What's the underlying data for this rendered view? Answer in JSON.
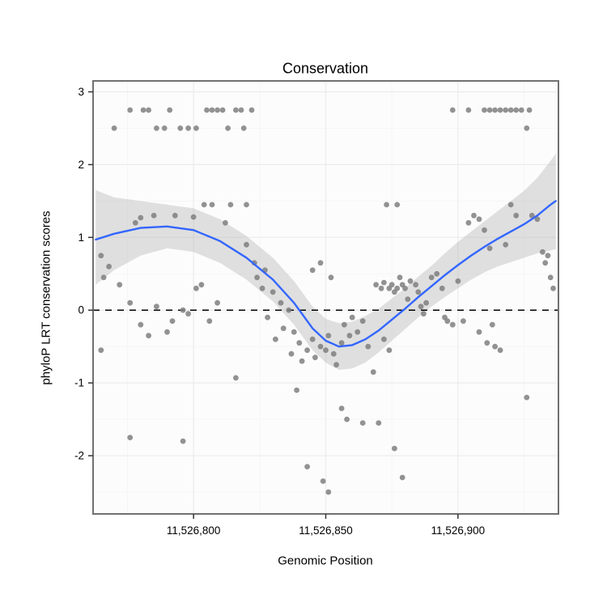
{
  "chart_data": {
    "type": "scatter",
    "title": "Conservation",
    "xlabel": "Genomic Position",
    "ylabel": "phyloP LRT conservation scores",
    "xlim": [
      11526762,
      11526938
    ],
    "ylim": [
      -2.8,
      3.15
    ],
    "x_ticks": [
      {
        "value": 11526800,
        "label": "11,526,800"
      },
      {
        "value": 11526850,
        "label": "11,526,850"
      },
      {
        "value": 11526900,
        "label": "11,526,900"
      }
    ],
    "y_ticks": [
      {
        "value": -2,
        "label": "-2"
      },
      {
        "value": -1,
        "label": "-1"
      },
      {
        "value": 0,
        "label": "0"
      },
      {
        "value": 1,
        "label": "1"
      },
      {
        "value": 2,
        "label": "2"
      },
      {
        "value": 3,
        "label": "3"
      }
    ],
    "x_minor": [
      11526775,
      11526825,
      11526875,
      11526925
    ],
    "y_minor": [
      -2.5,
      -1.5,
      -0.5,
      0.5,
      1.5,
      2.5
    ],
    "hline": 0,
    "legend": "none",
    "grid": "on",
    "colors": {
      "point": "#7F7F7F",
      "smooth": "#3366FF",
      "band": "#A8A8A8",
      "band_opacity": 0.35,
      "grid_major": "#ECECEC",
      "grid_minor": "#F6F6F6",
      "panel_bg": "#FCFCFC",
      "panel_border": "#707070",
      "hline": "#000000",
      "tick": "#333333",
      "text": "#000000"
    },
    "points": [
      [
        11526770,
        2.5
      ],
      [
        11526776,
        2.75
      ],
      [
        11526781,
        2.75
      ],
      [
        11526783,
        2.75
      ],
      [
        11526791,
        2.75
      ],
      [
        11526786,
        2.5
      ],
      [
        11526789,
        2.5
      ],
      [
        11526795,
        2.5
      ],
      [
        11526798,
        2.5
      ],
      [
        11526801,
        2.5
      ],
      [
        11526805,
        2.75
      ],
      [
        11526807,
        2.75
      ],
      [
        11526809,
        2.75
      ],
      [
        11526811,
        2.75
      ],
      [
        11526816,
        2.75
      ],
      [
        11526818,
        2.75
      ],
      [
        11526822,
        2.75
      ],
      [
        11526813,
        2.5
      ],
      [
        11526819,
        2.5
      ],
      [
        11526898,
        2.75
      ],
      [
        11526904,
        2.75
      ],
      [
        11526910,
        2.75
      ],
      [
        11526912,
        2.75
      ],
      [
        11526914,
        2.75
      ],
      [
        11526916,
        2.75
      ],
      [
        11526918,
        2.75
      ],
      [
        11526920,
        2.75
      ],
      [
        11526922,
        2.75
      ],
      [
        11526924,
        2.75
      ],
      [
        11526927,
        2.75
      ],
      [
        11526926,
        2.5
      ],
      [
        11526778,
        1.2
      ],
      [
        11526780,
        1.27
      ],
      [
        11526785,
        1.3
      ],
      [
        11526793,
        1.3
      ],
      [
        11526800,
        1.28
      ],
      [
        11526804,
        1.45
      ],
      [
        11526807,
        1.45
      ],
      [
        11526812,
        1.2
      ],
      [
        11526814,
        1.45
      ],
      [
        11526820,
        1.45
      ],
      [
        11526765,
        0.75
      ],
      [
        11526766,
        0.45
      ],
      [
        11526768,
        0.6
      ],
      [
        11526772,
        0.35
      ],
      [
        11526776,
        0.1
      ],
      [
        11526780,
        -0.2
      ],
      [
        11526783,
        -0.35
      ],
      [
        11526786,
        0.05
      ],
      [
        11526790,
        -0.3
      ],
      [
        11526792,
        -0.15
      ],
      [
        11526796,
        0.0
      ],
      [
        11526798,
        -0.05
      ],
      [
        11526801,
        0.3
      ],
      [
        11526803,
        0.35
      ],
      [
        11526806,
        -0.15
      ],
      [
        11526809,
        0.1
      ],
      [
        11526765,
        -0.55
      ],
      [
        11526776,
        -1.75
      ],
      [
        11526796,
        -1.8
      ],
      [
        11526820,
        0.9
      ],
      [
        11526823,
        0.65
      ],
      [
        11526824,
        0.45
      ],
      [
        11526826,
        0.3
      ],
      [
        11526827,
        0.55
      ],
      [
        11526828,
        -0.1
      ],
      [
        11526830,
        0.25
      ],
      [
        11526831,
        -0.4
      ],
      [
        11526833,
        0.1
      ],
      [
        11526834,
        -0.25
      ],
      [
        11526836,
        0.0
      ],
      [
        11526837,
        -0.6
      ],
      [
        11526838,
        -0.3
      ],
      [
        11526816,
        -0.93
      ],
      [
        11526839,
        -1.1
      ],
      [
        11526840,
        -0.45
      ],
      [
        11526841,
        -0.7
      ],
      [
        11526843,
        -0.55
      ],
      [
        11526845,
        -0.4
      ],
      [
        11526846,
        -0.65
      ],
      [
        11526848,
        -0.5
      ],
      [
        11526850,
        -0.55
      ],
      [
        11526851,
        -0.35
      ],
      [
        11526853,
        -0.6
      ],
      [
        11526854,
        -0.75
      ],
      [
        11526856,
        -0.45
      ],
      [
        11526857,
        -0.2
      ],
      [
        11526859,
        -0.35
      ],
      [
        11526860,
        -0.1
      ],
      [
        11526862,
        -0.3
      ],
      [
        11526864,
        -0.15
      ],
      [
        11526866,
        -0.5
      ],
      [
        11526845,
        0.55
      ],
      [
        11526848,
        0.65
      ],
      [
        11526852,
        0.45
      ],
      [
        11526843,
        -2.15
      ],
      [
        11526849,
        -2.35
      ],
      [
        11526851,
        -2.5
      ],
      [
        11526856,
        -1.35
      ],
      [
        11526858,
        -1.5
      ],
      [
        11526864,
        -1.55
      ],
      [
        11526868,
        -0.85
      ],
      [
        11526869,
        0.35
      ],
      [
        11526871,
        0.3
      ],
      [
        11526872,
        0.38
      ],
      [
        11526873,
        1.45
      ],
      [
        11526877,
        1.45
      ],
      [
        11526874,
        0.3
      ],
      [
        11526875,
        0.35
      ],
      [
        11526876,
        0.25
      ],
      [
        11526877,
        0.3
      ],
      [
        11526878,
        0.45
      ],
      [
        11526879,
        0.35
      ],
      [
        11526880,
        0.3
      ],
      [
        11526881,
        0.15
      ],
      [
        11526882,
        0.4
      ],
      [
        11526884,
        0.35
      ],
      [
        11526885,
        0.25
      ],
      [
        11526886,
        0.05
      ],
      [
        11526887,
        -0.05
      ],
      [
        11526888,
        0.1
      ],
      [
        11526872,
        -0.4
      ],
      [
        11526874,
        -0.55
      ],
      [
        11526876,
        -1.9
      ],
      [
        11526879,
        -2.3
      ],
      [
        11526870,
        -1.55
      ],
      [
        11526890,
        0.45
      ],
      [
        11526892,
        0.5
      ],
      [
        11526894,
        0.3
      ],
      [
        11526895,
        -0.1
      ],
      [
        11526896,
        -0.15
      ],
      [
        11526898,
        -0.2
      ],
      [
        11526900,
        0.4
      ],
      [
        11526902,
        -0.15
      ],
      [
        11526904,
        1.2
      ],
      [
        11526906,
        1.3
      ],
      [
        11526908,
        1.25
      ],
      [
        11526910,
        1.1
      ],
      [
        11526912,
        0.85
      ],
      [
        11526908,
        -0.3
      ],
      [
        11526911,
        -0.45
      ],
      [
        11526913,
        -0.2
      ],
      [
        11526914,
        -0.5
      ],
      [
        11526916,
        -0.55
      ],
      [
        11526918,
        0.9
      ],
      [
        11526920,
        1.45
      ],
      [
        11526922,
        1.3
      ],
      [
        11526926,
        -1.2
      ],
      [
        11526928,
        1.3
      ],
      [
        11526930,
        1.25
      ],
      [
        11526932,
        0.8
      ],
      [
        11526934,
        0.75
      ],
      [
        11526935,
        0.45
      ],
      [
        11526936,
        0.3
      ],
      [
        11526933,
        0.65
      ]
    ],
    "smooth": [
      [
        11526763,
        0.97
      ],
      [
        11526770,
        1.05
      ],
      [
        11526780,
        1.13
      ],
      [
        11526790,
        1.15
      ],
      [
        11526800,
        1.1
      ],
      [
        11526810,
        0.95
      ],
      [
        11526820,
        0.72
      ],
      [
        11526830,
        0.42
      ],
      [
        11526838,
        0.1
      ],
      [
        11526845,
        -0.25
      ],
      [
        11526850,
        -0.42
      ],
      [
        11526855,
        -0.5
      ],
      [
        11526860,
        -0.48
      ],
      [
        11526865,
        -0.4
      ],
      [
        11526870,
        -0.28
      ],
      [
        11526875,
        -0.13
      ],
      [
        11526880,
        0.02
      ],
      [
        11526885,
        0.18
      ],
      [
        11526890,
        0.33
      ],
      [
        11526895,
        0.48
      ],
      [
        11526900,
        0.62
      ],
      [
        11526905,
        0.75
      ],
      [
        11526910,
        0.87
      ],
      [
        11526915,
        0.98
      ],
      [
        11526920,
        1.08
      ],
      [
        11526925,
        1.18
      ],
      [
        11526930,
        1.3
      ],
      [
        11526935,
        1.45
      ],
      [
        11526937,
        1.5
      ]
    ],
    "band": [
      [
        11526763,
        0.35,
        1.65
      ],
      [
        11526770,
        0.55,
        1.55
      ],
      [
        11526780,
        0.75,
        1.5
      ],
      [
        11526790,
        0.85,
        1.45
      ],
      [
        11526800,
        0.8,
        1.4
      ],
      [
        11526810,
        0.65,
        1.25
      ],
      [
        11526820,
        0.42,
        1.02
      ],
      [
        11526830,
        0.12,
        0.72
      ],
      [
        11526838,
        -0.2,
        0.4
      ],
      [
        11526845,
        -0.55,
        0.05
      ],
      [
        11526850,
        -0.72,
        -0.12
      ],
      [
        11526855,
        -0.82,
        -0.18
      ],
      [
        11526860,
        -0.8,
        -0.16
      ],
      [
        11526865,
        -0.72,
        -0.08
      ],
      [
        11526870,
        -0.58,
        0.02
      ],
      [
        11526875,
        -0.42,
        0.16
      ],
      [
        11526880,
        -0.26,
        0.3
      ],
      [
        11526885,
        -0.1,
        0.46
      ],
      [
        11526890,
        0.05,
        0.61
      ],
      [
        11526895,
        0.18,
        0.78
      ],
      [
        11526900,
        0.3,
        0.94
      ],
      [
        11526905,
        0.42,
        1.08
      ],
      [
        11526910,
        0.52,
        1.22
      ],
      [
        11526915,
        0.6,
        1.36
      ],
      [
        11526920,
        0.66,
        1.5
      ],
      [
        11526925,
        0.72,
        1.64
      ],
      [
        11526930,
        0.78,
        1.82
      ],
      [
        11526935,
        0.82,
        2.05
      ],
      [
        11526937,
        0.84,
        2.15
      ]
    ]
  }
}
